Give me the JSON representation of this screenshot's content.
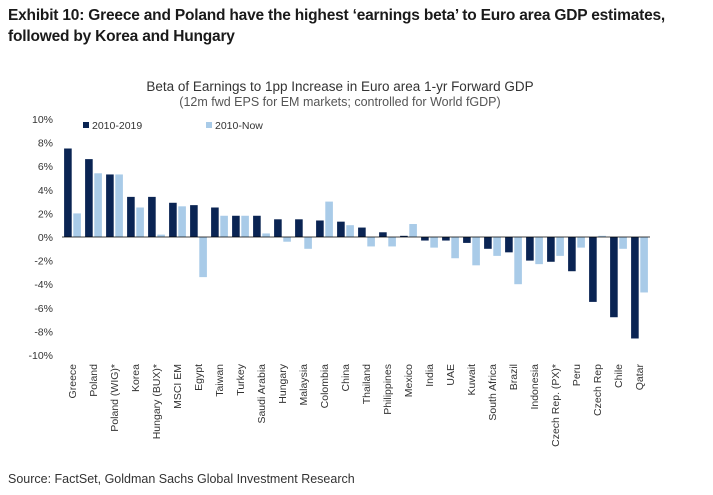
{
  "header": {
    "title": "Exhibit 10: Greece and Poland have the highest ‘earnings beta’ to Euro area GDP estimates, followed by Korea and Hungary"
  },
  "footer": {
    "source": "Source: FactSet, Goldman Sachs Global Investment Research"
  },
  "colors": {
    "series_1": "#0a2453",
    "series_2": "#a9cbe8",
    "zero_line": "#000000"
  },
  "chart_data": {
    "type": "bar",
    "title": "Beta of Earnings to 1pp Increase in Euro area 1-yr Forward GDP",
    "subtitle": "(12m fwd EPS for EM markets; controlled for World fGDP)",
    "xlabel": "",
    "ylabel": "",
    "ylim": [
      -10,
      10
    ],
    "y_ticks": [
      10,
      8,
      6,
      4,
      2,
      0,
      -2,
      -4,
      -6,
      -8,
      -10
    ],
    "y_tick_labels": [
      "10%",
      "8%",
      "6%",
      "4%",
      "2%",
      "0%",
      "-2%",
      "-4%",
      "-6%",
      "-8%",
      "-10%"
    ],
    "grid": false,
    "legend_position": "top-left",
    "categories": [
      "Greece",
      "Poland",
      "Poland (WIG)*",
      "Korea",
      "Hungary (BUX)*",
      "MSCI EM",
      "Egypt",
      "Taiwan",
      "Turkey",
      "Saudi Arabia",
      "Hungary",
      "Malaysia",
      "Colombia",
      "China",
      "Thailand",
      "Philippines",
      "Mexico",
      "India",
      "UAE",
      "Kuwait",
      "South Africa",
      "Brazil",
      "Indonesia",
      "Czech Rep. (PX)*",
      "Peru",
      "Czech Rep",
      "Chile",
      "Qatar"
    ],
    "series": [
      {
        "name": "2010-2019",
        "values": [
          7.5,
          6.6,
          5.3,
          3.4,
          3.4,
          2.9,
          2.7,
          2.5,
          1.8,
          1.8,
          1.5,
          1.5,
          1.4,
          1.3,
          0.8,
          0.4,
          0.1,
          -0.3,
          -0.3,
          -0.5,
          -1.0,
          -1.3,
          -2.0,
          -2.1,
          -2.9,
          -5.5,
          -6.8,
          -8.6
        ]
      },
      {
        "name": "2010-Now",
        "values": [
          2.0,
          5.4,
          5.3,
          2.5,
          0.2,
          2.6,
          -3.4,
          1.8,
          1.8,
          0.3,
          -0.4,
          -1.0,
          3.0,
          1.0,
          -0.8,
          -0.8,
          1.1,
          -0.9,
          -1.8,
          -2.4,
          -1.6,
          -4.0,
          -2.3,
          -1.6,
          -0.9,
          0.1,
          -1.0,
          -4.7
        ]
      }
    ]
  }
}
